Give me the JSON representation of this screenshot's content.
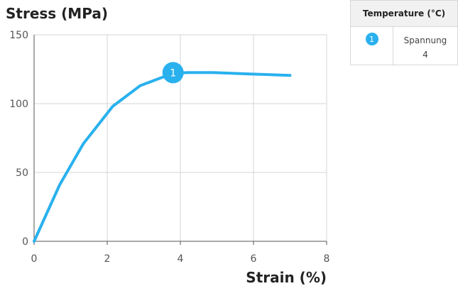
{
  "chart_data": {
    "type": "line",
    "ylabel": "Stress (MPa)",
    "xlabel": "Strain (%)",
    "xlim": [
      0,
      8
    ],
    "ylim": [
      0,
      150
    ],
    "xticks": [
      0,
      2,
      4,
      6,
      8
    ],
    "yticks": [
      0,
      50,
      100,
      150
    ],
    "grid": true,
    "series": [
      {
        "x": [
          0,
          0.7,
          1.35,
          2.15,
          2.9,
          3.8,
          4.2,
          4.9,
          5.9,
          7.0
        ],
        "y": [
          0,
          41,
          71,
          98,
          113,
          122,
          122.5,
          122.5,
          121.5,
          120.5
        ]
      }
    ],
    "annotations": [
      {
        "label": "1",
        "x": 3.8,
        "y": 122.5
      }
    ],
    "line_color": "#29b1ee"
  },
  "legend": {
    "header": "Temperature (°C)",
    "marker": "1",
    "series_name": "Spannung",
    "value": "4"
  }
}
